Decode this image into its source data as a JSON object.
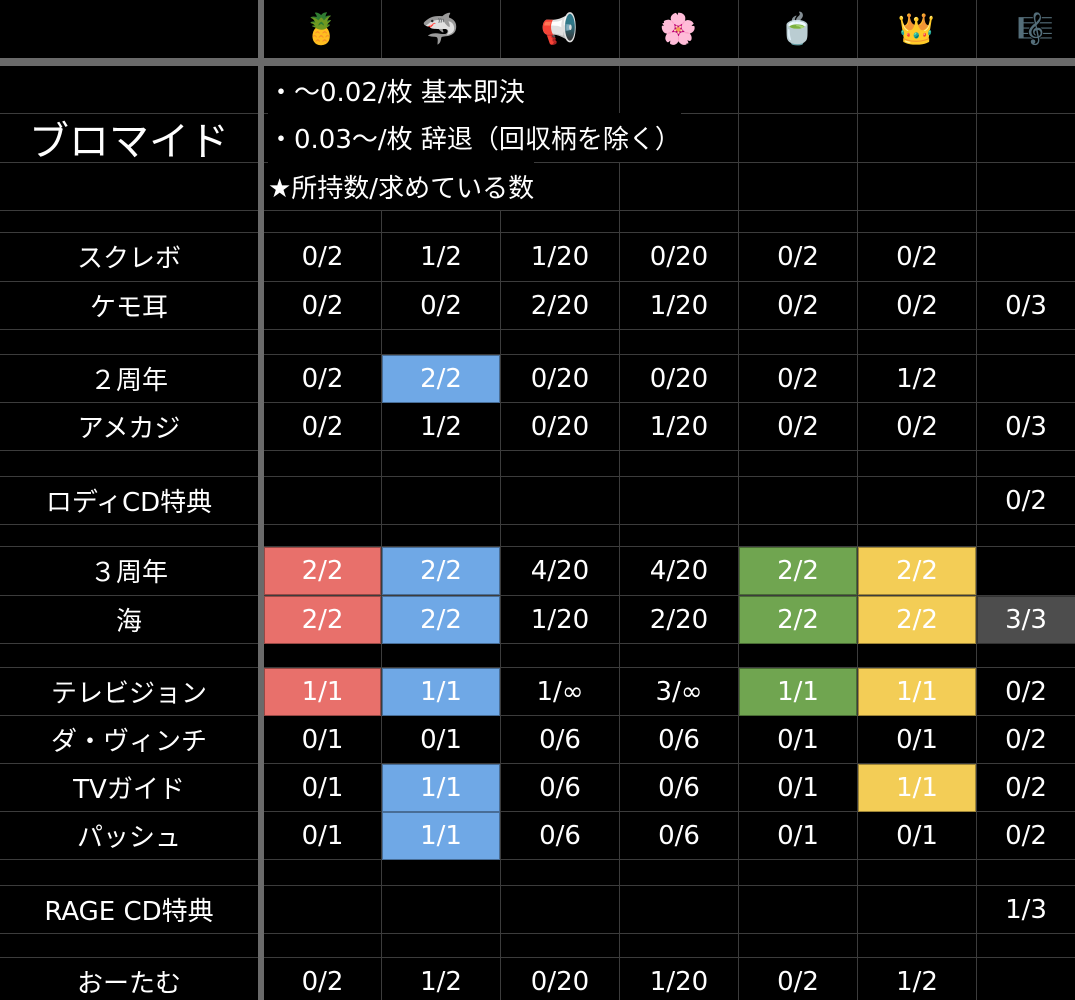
{
  "header": {
    "icons": [
      "🍍",
      "🦈",
      "📢",
      "🌸",
      "🍵",
      "👑",
      "🎼"
    ]
  },
  "title": "ブロマイド",
  "notes": [
    "・～0.02/枚 基本即決",
    "・0.03～/枚 辞退（回収柄を除く）",
    "★所持数/求めている数"
  ],
  "rows": [
    {
      "label": "スクレボ",
      "cells": [
        "0/2",
        "1/2",
        "1/20",
        "0/20",
        "0/2",
        "0/2",
        null
      ]
    },
    {
      "label": "ケモ耳",
      "cells": [
        "0/2",
        "0/2",
        "2/20",
        "1/20",
        "0/2",
        "0/2",
        "0/3"
      ]
    },
    {
      "label": "２周年",
      "cells": [
        "0/2",
        {
          "text": "2/2",
          "fill": "#6fa8e6"
        },
        "0/20",
        "0/20",
        "0/2",
        "1/2",
        null
      ]
    },
    {
      "label": "アメカジ",
      "cells": [
        "0/2",
        "1/2",
        "0/20",
        "1/20",
        "0/2",
        "0/2",
        "0/3"
      ]
    },
    {
      "label": "ロディCD特典",
      "cells": [
        null,
        null,
        null,
        null,
        null,
        null,
        "0/2"
      ]
    },
    {
      "label": "３周年",
      "cells": [
        {
          "text": "2/2",
          "fill": "#e8706b"
        },
        {
          "text": "2/2",
          "fill": "#6fa8e6"
        },
        "4/20",
        "4/20",
        {
          "text": "2/2",
          "fill": "#70a550"
        },
        {
          "text": "2/2",
          "fill": "#f3cd56"
        },
        null
      ]
    },
    {
      "label": "海",
      "cells": [
        {
          "text": "2/2",
          "fill": "#e8706b"
        },
        {
          "text": "2/2",
          "fill": "#6fa8e6"
        },
        "1/20",
        "2/20",
        {
          "text": "2/2",
          "fill": "#70a550"
        },
        {
          "text": "2/2",
          "fill": "#f3cd56"
        },
        {
          "text": "3/3",
          "fill": "#4d4d4d"
        }
      ]
    },
    {
      "label": "テレビジョン",
      "cells": [
        {
          "text": "1/1",
          "fill": "#e8706b"
        },
        {
          "text": "1/1",
          "fill": "#6fa8e6"
        },
        "1/∞",
        "3/∞",
        {
          "text": "1/1",
          "fill": "#70a550"
        },
        {
          "text": "1/1",
          "fill": "#f3cd56"
        },
        "0/2"
      ]
    },
    {
      "label": "ダ・ヴィンチ",
      "cells": [
        "0/1",
        "0/1",
        "0/6",
        "0/6",
        "0/1",
        "0/1",
        "0/2"
      ]
    },
    {
      "label": "TVガイド",
      "cells": [
        "0/1",
        {
          "text": "1/1",
          "fill": "#6fa8e6"
        },
        "0/6",
        "0/6",
        "0/1",
        {
          "text": "1/1",
          "fill": "#f3cd56"
        },
        "0/2"
      ]
    },
    {
      "label": "パッシュ",
      "cells": [
        "0/1",
        {
          "text": "1/1",
          "fill": "#6fa8e6"
        },
        "0/6",
        "0/6",
        "0/1",
        "0/1",
        "0/2"
      ]
    },
    {
      "label": "RAGE CD特典",
      "cells": [
        null,
        null,
        null,
        null,
        null,
        null,
        "1/3"
      ]
    },
    {
      "label": "おーたむ",
      "cells": [
        "0/2",
        "1/2",
        "0/20",
        "1/20",
        "0/2",
        "1/2",
        null
      ]
    }
  ]
}
